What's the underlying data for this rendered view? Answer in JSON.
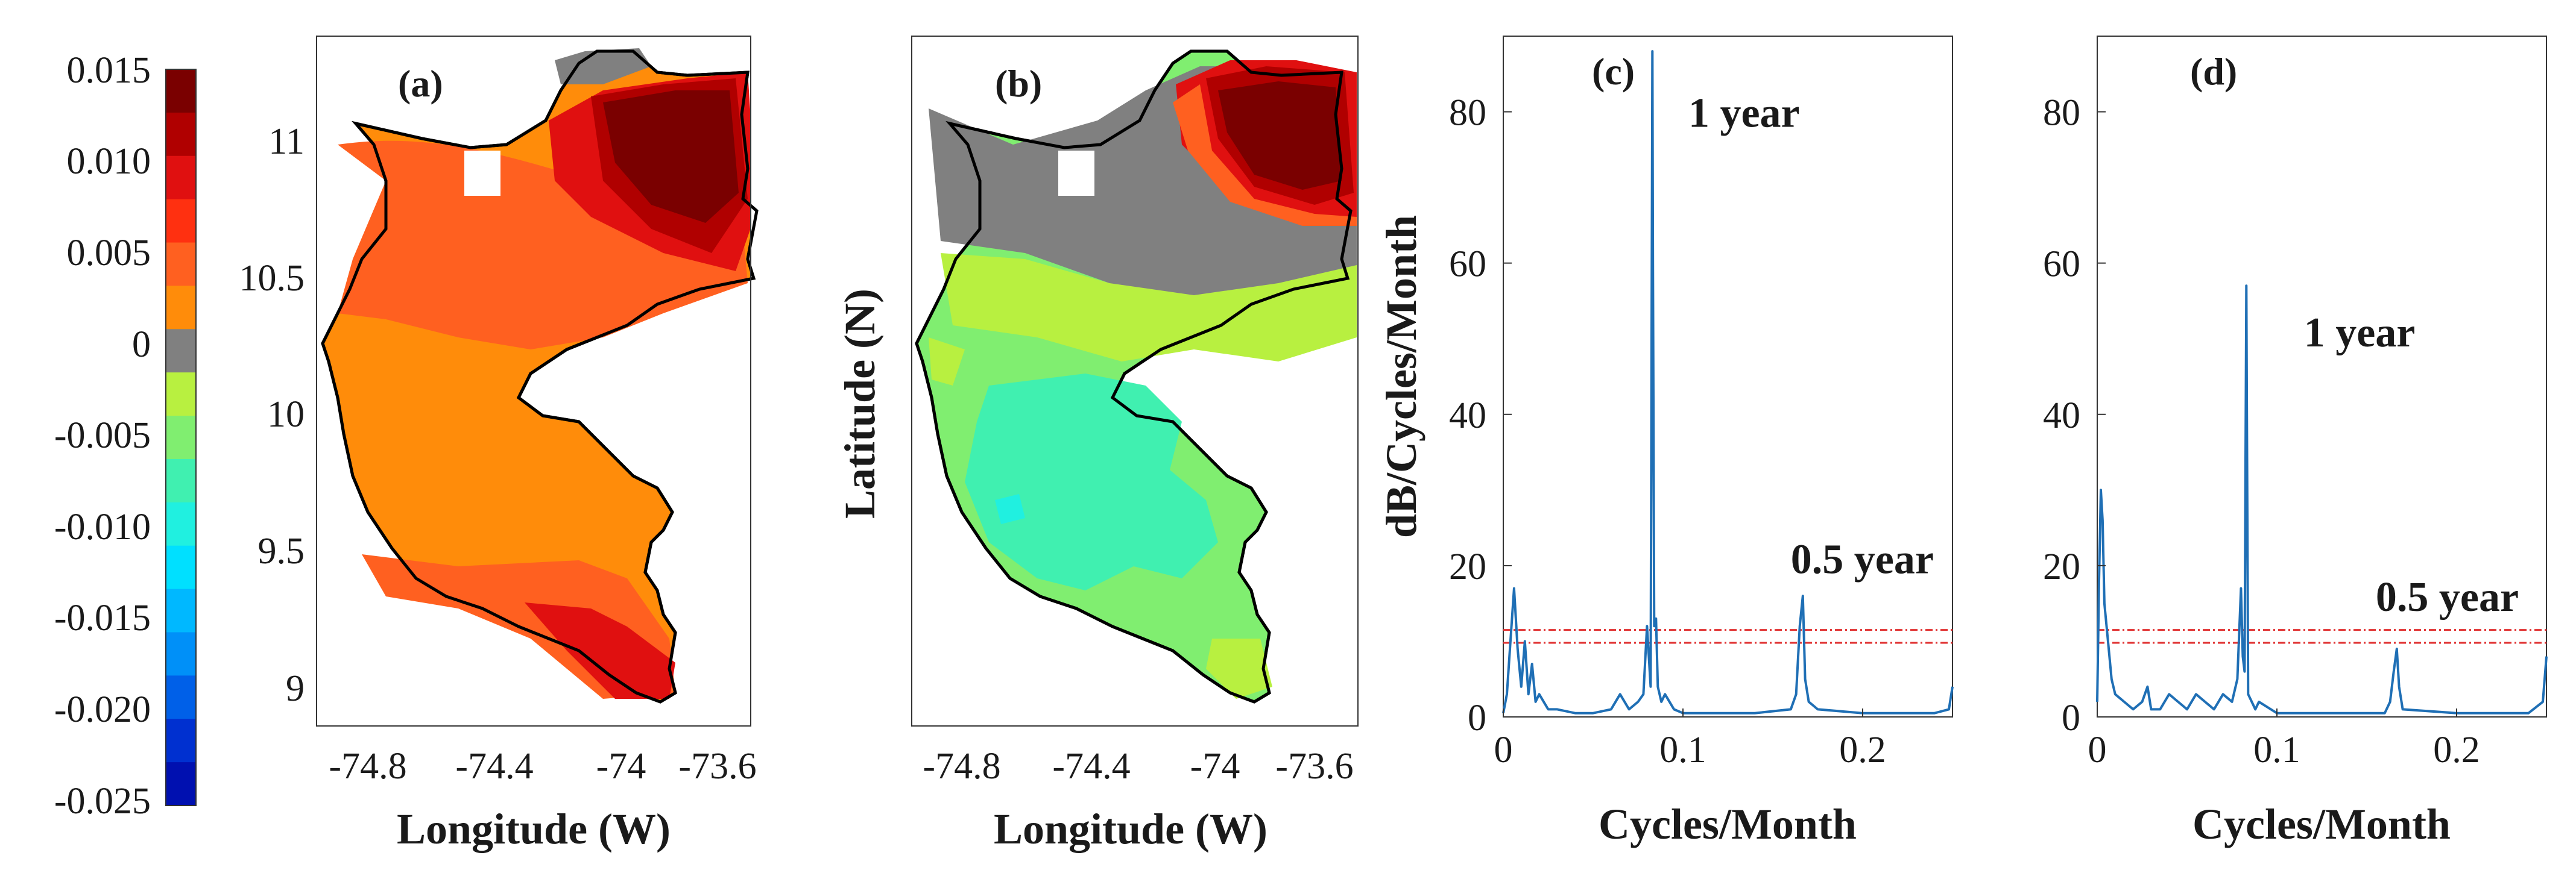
{
  "colorbar": {
    "ticks": [
      "0.015",
      "0.010",
      "0.005",
      "0",
      "-0.005",
      "-0.010",
      "-0.015",
      "-0.020",
      "-0.025"
    ],
    "colors": [
      "#7a0000",
      "#b00000",
      "#e01010",
      "#ff3010",
      "#ff6020",
      "#ff8c0a",
      "#808080",
      "#b8f040",
      "#80ee70",
      "#40f0b0",
      "#20f0e0",
      "#00e0ff",
      "#00b8ff",
      "#0090f8",
      "#0060e8",
      "#0030d0",
      "#0010b0"
    ]
  },
  "maps": [
    {
      "panel": "(a)",
      "xlabel": "Longitude (W)",
      "ylabel": "",
      "xticks": [
        "-74.8",
        "-74.4",
        "-74",
        "-73.6"
      ],
      "yticks": [
        "11",
        "10.5",
        "10",
        "9.5",
        "9"
      ]
    },
    {
      "panel": "(b)",
      "xlabel": "Longitude (W)",
      "ylabel": "Latitude (N)",
      "xticks": [
        "-74.8",
        "-74.4",
        "-74",
        "-73.6"
      ],
      "yticks": []
    }
  ],
  "chart_data": [
    {
      "type": "line",
      "panel": "(c)",
      "title": "",
      "xlabel": "Cycles/Month",
      "ylabel": "dB/Cycles/Month",
      "xlim": [
        0,
        0.25
      ],
      "ylim": [
        0,
        90
      ],
      "xticks": [
        "0",
        "0.1",
        "0.2"
      ],
      "yticks": [
        "0",
        "20",
        "40",
        "60",
        "80"
      ],
      "x": [
        0,
        0.002,
        0.004,
        0.006,
        0.008,
        0.01,
        0.012,
        0.014,
        0.016,
        0.018,
        0.02,
        0.025,
        0.03,
        0.04,
        0.05,
        0.06,
        0.065,
        0.07,
        0.075,
        0.078,
        0.08,
        0.081,
        0.082,
        0.083,
        0.0833,
        0.084,
        0.085,
        0.086,
        0.088,
        0.09,
        0.095,
        0.1,
        0.12,
        0.14,
        0.16,
        0.163,
        0.165,
        0.1667,
        0.168,
        0.17,
        0.175,
        0.2,
        0.22,
        0.24,
        0.248,
        0.25
      ],
      "values": [
        0.5,
        3,
        10,
        17,
        9,
        4,
        10,
        3,
        7,
        2,
        3,
        1,
        1,
        0.5,
        0.5,
        1,
        3,
        1,
        2,
        3,
        12,
        8,
        4,
        88,
        60,
        12,
        13,
        4,
        2,
        3,
        1,
        0.5,
        0.5,
        0.5,
        1,
        3,
        12,
        16,
        5,
        2,
        1,
        0.5,
        0.5,
        0.5,
        1,
        4
      ],
      "thresholds": [
        11.5,
        9.8
      ],
      "annotations": [
        {
          "text": "1 year",
          "x": 0.103,
          "y": 78
        },
        {
          "text": "0.5 year",
          "x": 0.16,
          "y": 19
        }
      ]
    },
    {
      "type": "line",
      "panel": "(d)",
      "title": "",
      "xlabel": "Cycles/Month",
      "ylabel": "",
      "xlim": [
        0,
        0.25
      ],
      "ylim": [
        0,
        90
      ],
      "xticks": [
        "0",
        "0.1",
        "0.2"
      ],
      "yticks": [
        "0",
        "20",
        "40",
        "60",
        "80"
      ],
      "x": [
        0,
        0.001,
        0.002,
        0.003,
        0.004,
        0.006,
        0.008,
        0.01,
        0.015,
        0.02,
        0.025,
        0.028,
        0.03,
        0.035,
        0.04,
        0.045,
        0.05,
        0.055,
        0.06,
        0.065,
        0.07,
        0.075,
        0.078,
        0.08,
        0.081,
        0.082,
        0.083,
        0.0833,
        0.084,
        0.086,
        0.088,
        0.09,
        0.1,
        0.12,
        0.14,
        0.16,
        0.163,
        0.165,
        0.1667,
        0.168,
        0.17,
        0.2,
        0.22,
        0.24,
        0.248,
        0.25
      ],
      "values": [
        2,
        18,
        30,
        26,
        15,
        10,
        5,
        3,
        2,
        1,
        2,
        4,
        1,
        1,
        3,
        2,
        1,
        3,
        2,
        1,
        3,
        2,
        5,
        17,
        8,
        6,
        57,
        40,
        3,
        2,
        1,
        2,
        0.5,
        0.5,
        0.5,
        0.5,
        2,
        6,
        9,
        4,
        1,
        0.5,
        0.5,
        0.5,
        2,
        8
      ],
      "thresholds": [
        11.5,
        9.8
      ],
      "annotations": [
        {
          "text": "1 year",
          "x": 0.115,
          "y": 49
        },
        {
          "text": "0.5 year",
          "x": 0.155,
          "y": 14
        }
      ]
    }
  ]
}
